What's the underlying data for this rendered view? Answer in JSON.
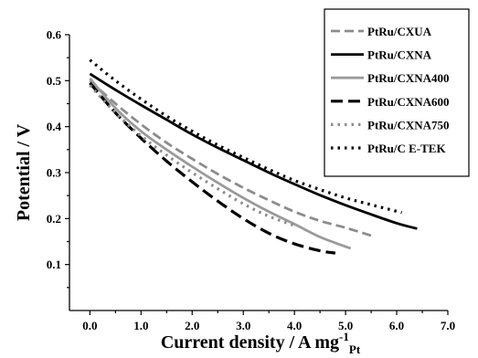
{
  "chart_data": {
    "type": "line",
    "xlabel": "Current density / A mg",
    "xlabel_sup": "-1",
    "xlabel_sub": "Pt",
    "ylabel": "Potential / V",
    "xlim": [
      -0.4,
      7.0
    ],
    "ylim": [
      0.0,
      0.6
    ],
    "x_ticks": [
      "0.0",
      "1.0",
      "2.0",
      "3.0",
      "4.0",
      "5.0",
      "6.0",
      "7.0"
    ],
    "y_ticks": [
      "0.1",
      "0.2",
      "0.3",
      "0.4",
      "0.5",
      "0.6"
    ],
    "grid": false,
    "legend_position": "top-right",
    "series": [
      {
        "name": "PtRu/CXUA",
        "color": "#8c8c8c",
        "dash": "dashed",
        "x": [
          0,
          0.5,
          1,
          1.5,
          2,
          2.5,
          3,
          3.5,
          4,
          4.5,
          5,
          5.5
        ],
        "y": [
          0.5,
          0.45,
          0.405,
          0.365,
          0.33,
          0.297,
          0.267,
          0.24,
          0.215,
          0.195,
          0.18,
          0.163
        ]
      },
      {
        "name": "PtRu/CXNA",
        "color": "#000000",
        "dash": "solid",
        "x": [
          0,
          0.5,
          1,
          1.5,
          2,
          2.5,
          3,
          3.5,
          4,
          4.5,
          5,
          5.5,
          6,
          6.4
        ],
        "y": [
          0.515,
          0.48,
          0.447,
          0.415,
          0.383,
          0.354,
          0.327,
          0.3,
          0.275,
          0.251,
          0.229,
          0.209,
          0.19,
          0.178
        ]
      },
      {
        "name": "PtRu/CXNA400",
        "color": "#9a9a9a",
        "dash": "solid",
        "x": [
          0,
          0.5,
          1,
          1.5,
          2,
          2.5,
          3,
          3.5,
          4,
          4.5,
          5.1
        ],
        "y": [
          0.505,
          0.44,
          0.39,
          0.35,
          0.313,
          0.278,
          0.245,
          0.215,
          0.188,
          0.16,
          0.135
        ]
      },
      {
        "name": "PtRu/CXNA600",
        "color": "#000000",
        "dash": "longdash",
        "x": [
          0,
          0.5,
          1,
          1.5,
          2,
          2.5,
          3,
          3.5,
          4,
          4.5,
          4.8
        ],
        "y": [
          0.495,
          0.43,
          0.375,
          0.325,
          0.28,
          0.238,
          0.2,
          0.168,
          0.145,
          0.13,
          0.125
        ]
      },
      {
        "name": "PtRu/CXNA750",
        "color": "#8c8c8c",
        "dash": "dotted",
        "x": [
          0,
          0.5,
          1,
          1.5,
          2,
          2.5,
          3,
          3.5,
          4
        ],
        "y": [
          0.49,
          0.43,
          0.38,
          0.338,
          0.3,
          0.265,
          0.232,
          0.205,
          0.185
        ]
      },
      {
        "name": "PtRu/C E-TEK",
        "color": "#000000",
        "dash": "dotted",
        "x": [
          0,
          0.5,
          1,
          1.5,
          2,
          2.5,
          3,
          3.5,
          4,
          4.5,
          5,
          5.5,
          6.1
        ],
        "y": [
          0.545,
          0.5,
          0.46,
          0.423,
          0.39,
          0.36,
          0.333,
          0.307,
          0.283,
          0.263,
          0.245,
          0.23,
          0.213
        ]
      }
    ]
  }
}
